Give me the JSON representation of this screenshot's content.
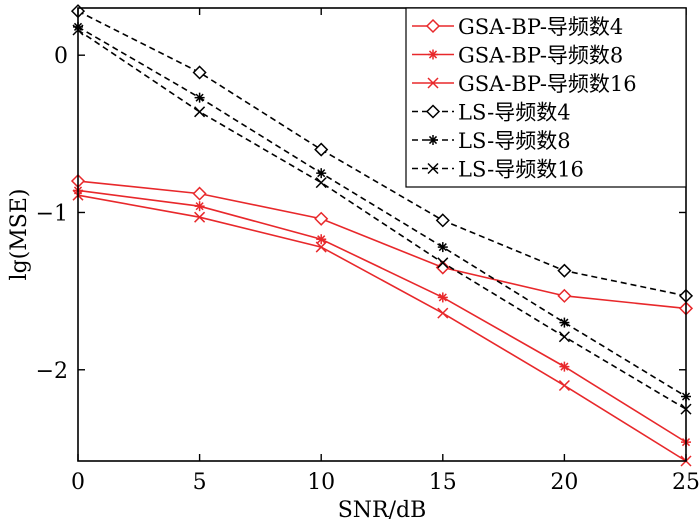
{
  "chart_data": {
    "type": "line",
    "title": "",
    "xlabel": "SNR/dB",
    "ylabel": "lg(MSE)",
    "xlim": [
      0,
      25
    ],
    "ylim": [
      -2.58,
      0.3
    ],
    "x_ticks": [
      0,
      5,
      10,
      15,
      20,
      25
    ],
    "x_tick_labels": [
      "0",
      "5",
      "10",
      "15",
      "20",
      "25"
    ],
    "y_ticks": [
      0,
      -1,
      -2
    ],
    "y_tick_labels": [
      "0",
      "−1",
      "−2"
    ],
    "grid": false,
    "legend_position": "top-right",
    "x": [
      0,
      5,
      10,
      15,
      20,
      25
    ],
    "series": [
      {
        "name": "GSA-BP-导频数4",
        "values": [
          -0.8,
          -0.88,
          -1.04,
          -1.35,
          -1.53,
          -1.61
        ],
        "color": "#e8282b",
        "marker": "diamond",
        "dash": "solid"
      },
      {
        "name": "GSA-BP-导频数8",
        "values": [
          -0.86,
          -0.96,
          -1.17,
          -1.54,
          -1.98,
          -2.46
        ],
        "color": "#e8282b",
        "marker": "asterisk",
        "dash": "solid"
      },
      {
        "name": "GSA-BP-导频数16",
        "values": [
          -0.89,
          -1.03,
          -1.22,
          -1.64,
          -2.1,
          -2.58
        ],
        "color": "#e8282b",
        "marker": "x",
        "dash": "solid"
      },
      {
        "name": "LS-导频数4",
        "values": [
          0.28,
          -0.11,
          -0.6,
          -1.05,
          -1.37,
          -1.53
        ],
        "color": "#000000",
        "marker": "diamond",
        "dash": "dashed"
      },
      {
        "name": "LS-导频数8",
        "values": [
          0.18,
          -0.27,
          -0.75,
          -1.22,
          -1.7,
          -2.17
        ],
        "color": "#000000",
        "marker": "asterisk",
        "dash": "dashed"
      },
      {
        "name": "LS-导频数16",
        "values": [
          0.16,
          -0.36,
          -0.81,
          -1.32,
          -1.79,
          -2.25
        ],
        "color": "#000000",
        "marker": "x",
        "dash": "dashed"
      }
    ]
  }
}
